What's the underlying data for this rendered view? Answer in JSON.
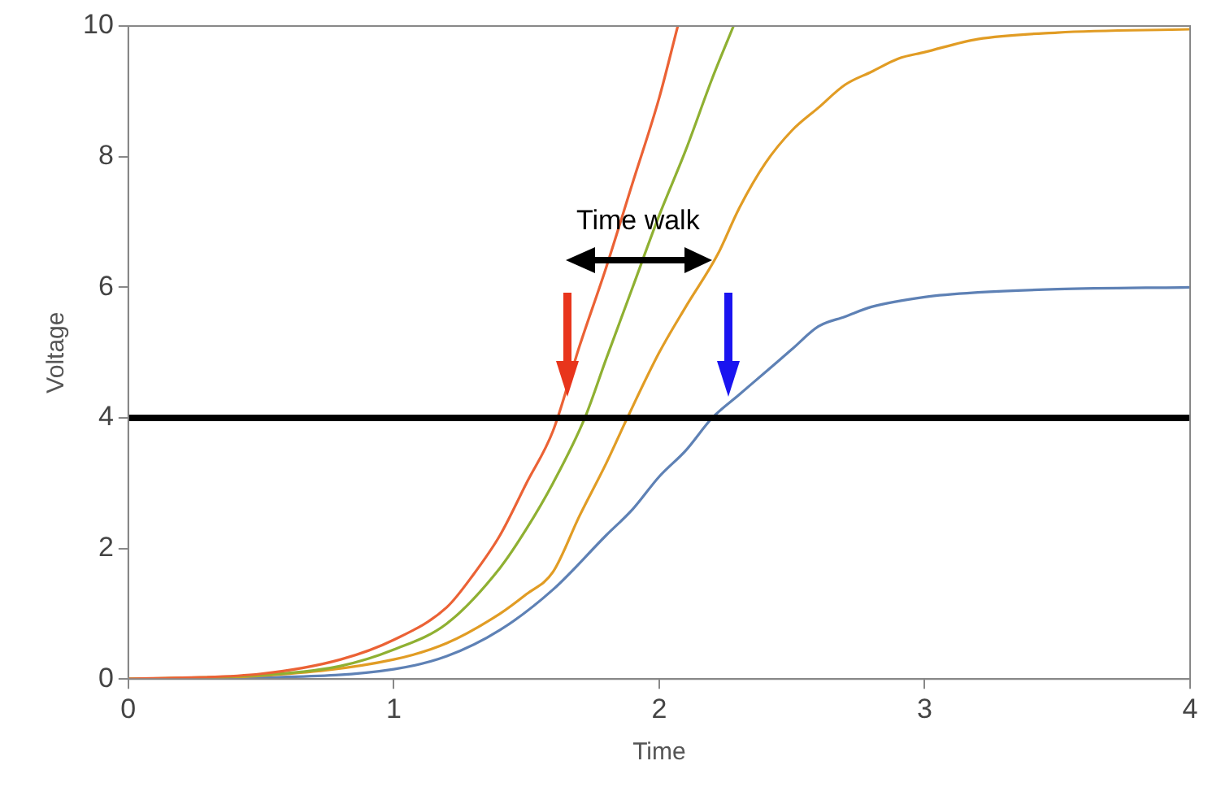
{
  "chart_data": {
    "type": "line",
    "xlabel": "Time",
    "ylabel": "Voltage",
    "xlim": [
      0,
      4
    ],
    "ylim": [
      0,
      10
    ],
    "xticks": [
      0,
      1,
      2,
      3,
      4
    ],
    "yticks": [
      0,
      2,
      4,
      6,
      8,
      10
    ],
    "grid": false,
    "legend": false,
    "marker": "none",
    "line_style": "solid",
    "series": [
      {
        "color": "#eb6235",
        "x": [
          0,
          0.5,
          0.8,
          1.0,
          1.2,
          1.3,
          1.4,
          1.5,
          1.6,
          1.7,
          1.8,
          1.9,
          2.0,
          2.07
        ],
        "values": [
          0,
          0.08,
          0.3,
          0.6,
          1.1,
          1.6,
          2.2,
          3.0,
          3.8,
          5.1,
          6.3,
          7.6,
          8.9,
          10
        ]
      },
      {
        "color": "#8fb032",
        "x": [
          0,
          0.5,
          0.8,
          1.0,
          1.2,
          1.4,
          1.5,
          1.6,
          1.72,
          1.8,
          1.9,
          2.0,
          2.1,
          2.2,
          2.28
        ],
        "values": [
          0,
          0.06,
          0.2,
          0.45,
          0.85,
          1.7,
          2.3,
          3.0,
          4,
          4.9,
          6.0,
          7.1,
          8.1,
          9.2,
          10
        ]
      },
      {
        "color": "#e19c24",
        "x": [
          0,
          0.5,
          1.0,
          1.2,
          1.4,
          1.5,
          1.6,
          1.7,
          1.8,
          1.88,
          2.0,
          2.1,
          2.22,
          2.3,
          2.4,
          2.5,
          2.6,
          2.7,
          2.8,
          2.9,
          3.0,
          3.2,
          3.5,
          4.0
        ],
        "values": [
          0,
          0.05,
          0.3,
          0.55,
          1.0,
          1.3,
          1.64,
          2.5,
          3.3,
          4,
          5.0,
          5.7,
          6.5,
          7.2,
          7.9,
          8.4,
          8.75,
          9.1,
          9.3,
          9.5,
          9.6,
          9.8,
          9.9,
          9.95
        ]
      },
      {
        "color": "#5e81b5",
        "x": [
          0,
          0.5,
          1.0,
          1.2,
          1.4,
          1.6,
          1.8,
          1.9,
          2.0,
          2.1,
          2.2,
          2.3,
          2.4,
          2.5,
          2.6,
          2.7,
          2.8,
          3.0,
          3.2,
          3.5,
          4.0
        ],
        "values": [
          0,
          0.02,
          0.15,
          0.35,
          0.75,
          1.37,
          2.2,
          2.6,
          3.1,
          3.5,
          4,
          4.35,
          4.7,
          5.05,
          5.4,
          5.55,
          5.7,
          5.85,
          5.92,
          5.97,
          6.0
        ]
      }
    ],
    "ref_lines": [
      {
        "axis": "y",
        "value": 4,
        "color": "#000000",
        "line_style": "solid"
      }
    ],
    "annotations": [
      "Time walk"
    ]
  }
}
